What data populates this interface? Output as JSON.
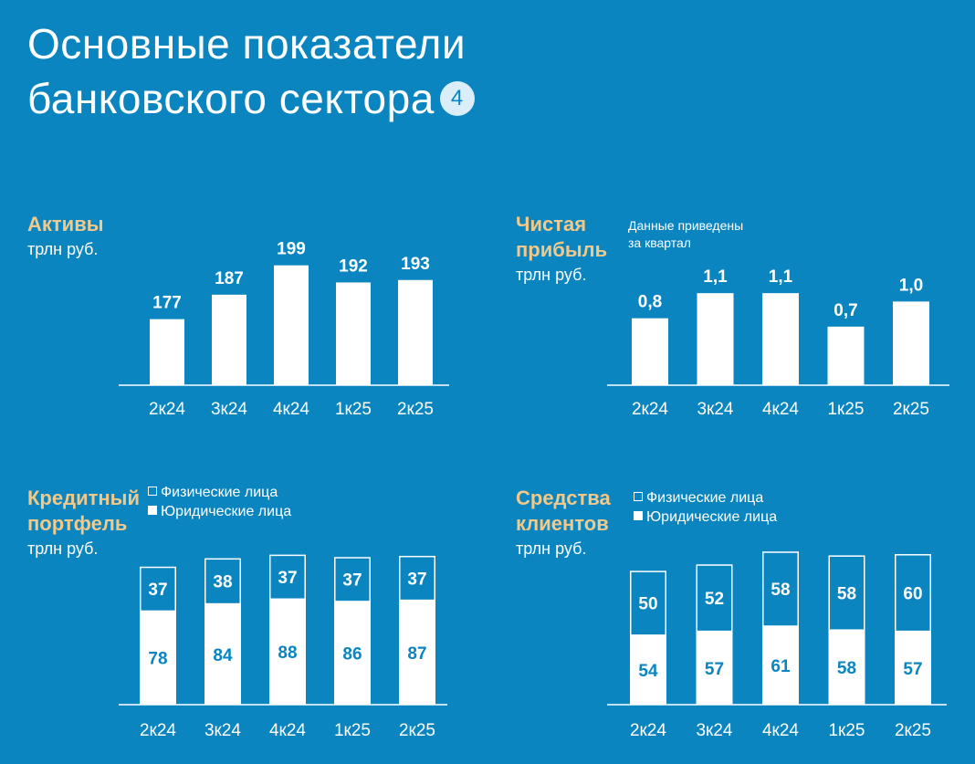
{
  "title": {
    "line1": "Основные показатели",
    "line2": "банковского сектора",
    "badge": "4"
  },
  "colors": {
    "background": "#0a85bf",
    "accent": "#f2c98a",
    "bar": "#ffffff",
    "value_on_bar": "#0a85bf"
  },
  "panels": {
    "assets": {
      "title": "Активы",
      "unit": "трлн руб."
    },
    "profit": {
      "title_line1": "Чистая",
      "title_line2": "прибыль",
      "unit": "трлн руб.",
      "note_line1": "Данные приведены",
      "note_line2": "за квартал"
    },
    "loans": {
      "title_line1": "Кредитный",
      "title_line2": "портфель",
      "unit": "трлн руб.",
      "legend_individuals": "Физические лица",
      "legend_corporates": "Юридические лица"
    },
    "funds": {
      "title_line1": "Средства",
      "title_line2": "клиентов",
      "unit": "трлн руб.",
      "legend_individuals": "Физические лица",
      "legend_corporates": "Юридические лица"
    }
  },
  "chart_data": [
    {
      "id": "assets",
      "type": "bar",
      "title": "Активы",
      "categories": [
        "2к24",
        "3к24",
        "4к24",
        "1к25",
        "2к25"
      ],
      "values": [
        177,
        187,
        199,
        192,
        193
      ],
      "labels": [
        "177",
        "187",
        "199",
        "192",
        "193"
      ],
      "ylim": [
        150,
        200
      ],
      "grid": false
    },
    {
      "id": "profit",
      "type": "bar",
      "title": "Чистая прибыль",
      "categories": [
        "2к24",
        "3к24",
        "4к24",
        "1к25",
        "2к25"
      ],
      "values": [
        0.8,
        1.1,
        1.1,
        0.7,
        1.0
      ],
      "labels": [
        "0,8",
        "1,1",
        "1,1",
        "0,7",
        "1,0"
      ],
      "ylim": [
        0,
        1.2
      ],
      "grid": false
    },
    {
      "id": "loans",
      "type": "bar",
      "stacked": true,
      "title": "Кредитный портфель",
      "categories": [
        "2к24",
        "3к24",
        "4к24",
        "1к25",
        "2к25"
      ],
      "series": [
        {
          "name": "Юридические лица",
          "values": [
            78,
            84,
            88,
            86,
            87
          ]
        },
        {
          "name": "Физические лица",
          "values": [
            37,
            38,
            37,
            37,
            37
          ]
        }
      ],
      "legend": "top-left",
      "grid": false
    },
    {
      "id": "funds",
      "type": "bar",
      "stacked": true,
      "title": "Средства клиентов",
      "categories": [
        "2к24",
        "3к24",
        "4к24",
        "1к25",
        "2к25"
      ],
      "series": [
        {
          "name": "Юридические лица",
          "values": [
            54,
            57,
            61,
            58,
            57
          ]
        },
        {
          "name": "Физические лица",
          "values": [
            50,
            52,
            58,
            58,
            60
          ]
        }
      ],
      "legend": "top-left",
      "grid": false
    }
  ]
}
